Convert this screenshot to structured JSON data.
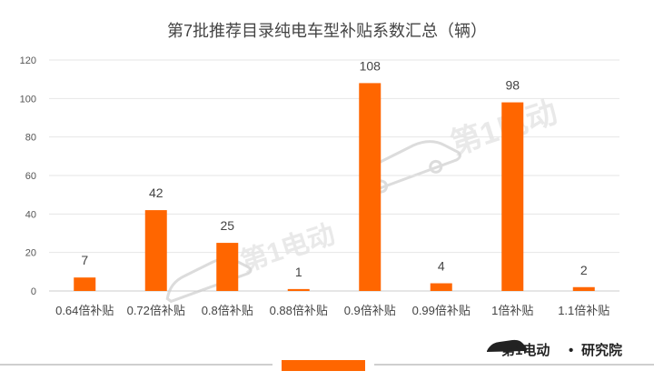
{
  "chart_data": {
    "type": "bar",
    "title": "第7批推荐目录纯电车型补贴系数汇总（辆）",
    "categories": [
      "0.64倍补贴",
      "0.72倍补贴",
      "0.8倍补贴",
      "0.88倍补贴",
      "0.9倍补贴",
      "0.99倍补贴",
      "1倍补贴",
      "1.1倍补贴"
    ],
    "values": [
      7,
      42,
      25,
      1,
      108,
      4,
      98,
      2
    ],
    "yticks": [
      "0",
      "20",
      "40",
      "60",
      "80",
      "100",
      "120"
    ],
    "ylim": [
      0,
      120
    ],
    "grid": true,
    "bar_color": "#ff6600",
    "gridline_color": "#e6e6e6"
  },
  "branding": {
    "watermark_logo": "第1电动",
    "footer_brand": "第1电动",
    "footer_separator": "•",
    "footer_suffix": "研究院",
    "accent_color": "#ff6600"
  }
}
